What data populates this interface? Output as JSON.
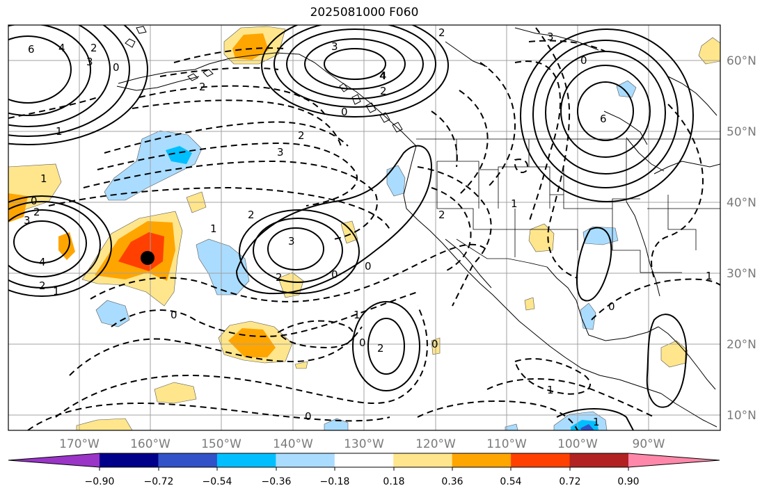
{
  "title": "2025081000 F060",
  "map": {
    "lon_labels": [
      "170°W",
      "160°W",
      "150°W",
      "140°W",
      "130°W",
      "120°W",
      "110°W",
      "100°W",
      "90°W"
    ],
    "lat_labels": [
      "60°N",
      "50°N",
      "40°N",
      "30°N",
      "20°N",
      "10°N"
    ],
    "contour_labels": [
      "6",
      "4",
      "3",
      "0",
      "2",
      "3",
      "4",
      "2",
      "0",
      "2",
      "3",
      "2",
      "1",
      "0",
      "2",
      "1",
      "3",
      "4",
      "2",
      "1",
      "3",
      "2",
      "0",
      "1",
      "2",
      "0",
      "2",
      "0",
      "1",
      "4",
      "3",
      "6",
      "0",
      "1",
      "2",
      "0",
      "2",
      "0",
      "1",
      "0",
      "1",
      "0",
      "1"
    ]
  },
  "colorbar": {
    "ticks": [
      "−0.90",
      "−0.72",
      "−0.54",
      "−0.36",
      "−0.18",
      "0.18",
      "0.36",
      "0.54",
      "0.72",
      "0.90"
    ],
    "colors": [
      "#9a35c8",
      "#00008b",
      "#3152c8",
      "#00bfff",
      "#aadcff",
      "#ffffff",
      "#ffe68c",
      "#ffa500",
      "#ff4000",
      "#b22222",
      "#ff88aa"
    ]
  }
}
